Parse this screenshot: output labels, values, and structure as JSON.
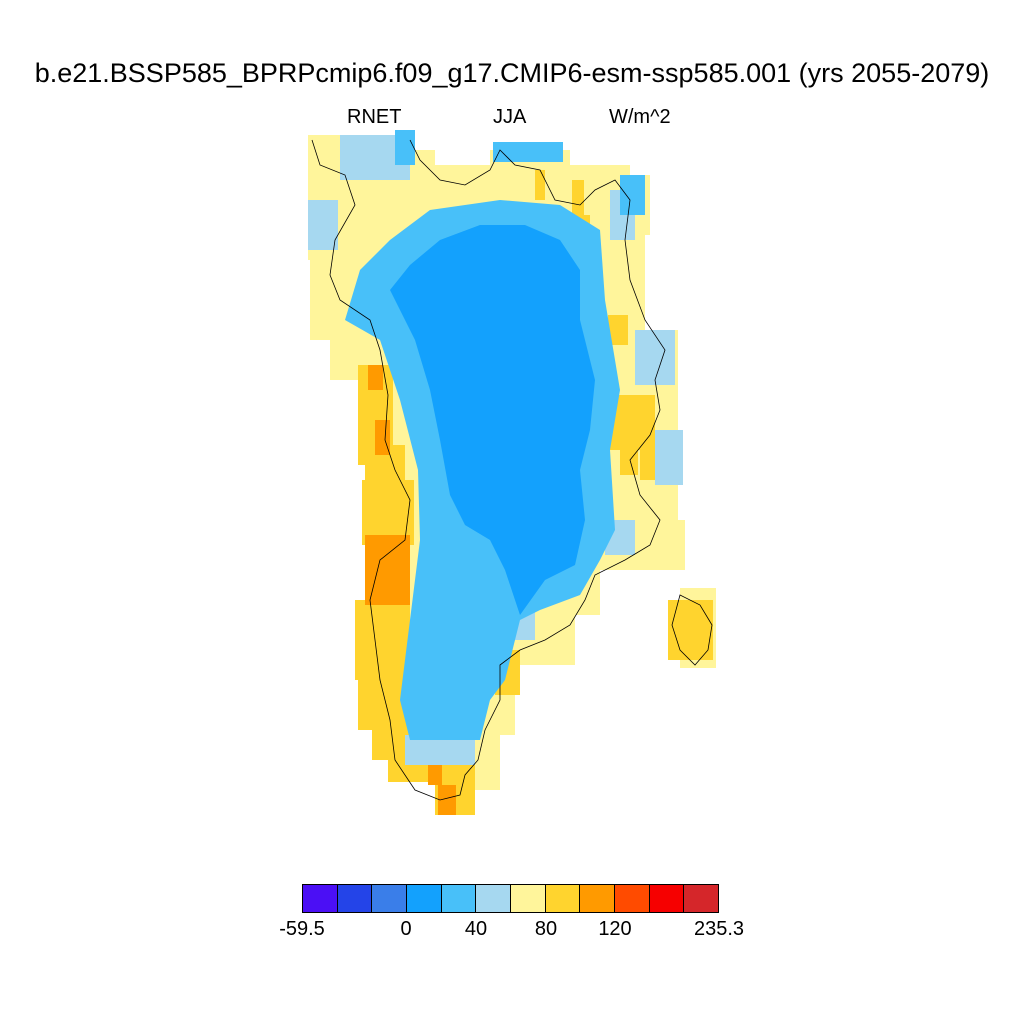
{
  "figure": {
    "title": "b.e21.BSSP585_BPRPcmip6.f09_g17.CMIP6-esm-ssp585.001 (yrs 2055-2079)",
    "variable": "RNET",
    "season": "JJA",
    "units": "W/m^2"
  },
  "colorbar": {
    "colors": [
      "#4b0ff5",
      "#2444e8",
      "#3a7ee9",
      "#13a1fd",
      "#48c0f9",
      "#a6d8f0",
      "#fff59b",
      "#ffd42e",
      "#ff9a00",
      "#ff4b00",
      "#f60000",
      "#d5262a"
    ],
    "tick_labels": [
      "-59.5",
      "0",
      "40",
      "80",
      "120",
      "235.3"
    ]
  },
  "chart_data": {
    "type": "heatmap",
    "region": "Greenland",
    "title": "b.e21.BSSP585_BPRPcmip6.f09_g17.CMIP6-esm-ssp585.001 (yrs 2055-2079)",
    "variable": "RNET",
    "season": "JJA",
    "units": "W/m^2",
    "colorbar_min": -59.5,
    "colorbar_max": 235.3,
    "colorbar_ticks": [
      -59.5,
      0,
      40,
      80,
      120,
      235.3
    ],
    "interior_ice_sheet_class": "0 to 20",
    "ice_sheet_margin_class": "20 to 40",
    "coastal_band_classes": [
      "40 to 60",
      "60 to 80",
      "80 to 100"
    ],
    "southwest_coast_max_class": "100 to 120"
  }
}
